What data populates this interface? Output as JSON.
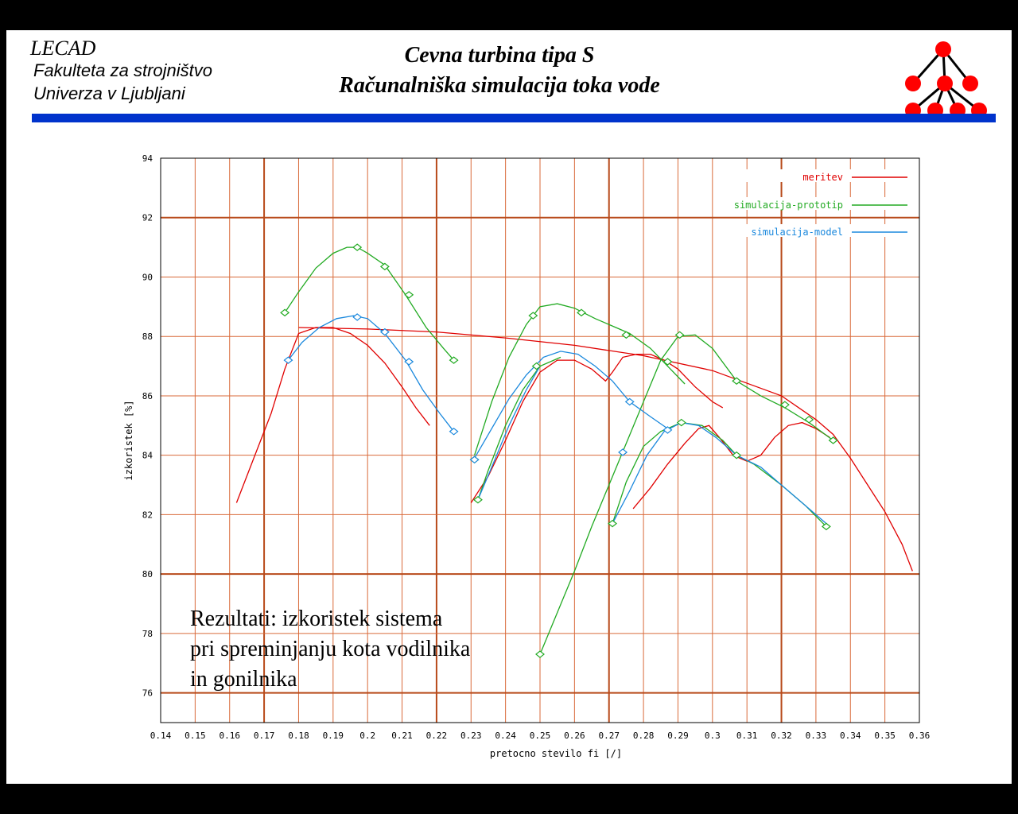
{
  "header": {
    "lab": "LECAD",
    "org_line1": "Fakulteta za strojništvo",
    "org_line2": "Univerza v Ljubljani",
    "title_line1": "Cevna turbina tipa S",
    "title_line2": "Računalniška simulacija toka vode"
  },
  "colors": {
    "header_bar": "#0033cc",
    "logo_node": "#ff0000",
    "grid_major": "#b84a1a",
    "grid_minor": "#d96a3a",
    "meritev": "#e00000",
    "simulacija_prototip": "#22aa22",
    "simulacija_model": "#1a88dd"
  },
  "logo_icon": "tree-icon",
  "caption": {
    "line1": "Rezultati: izkoristek sistema",
    "line2": "pri spreminjanju kota vodilnika",
    "line3": "in gonilnika"
  },
  "chart_data": {
    "type": "line",
    "xlabel": "pretocno stevilo fi [/]",
    "ylabel": "izkoristek [%]",
    "xlim": [
      0.14,
      0.36
    ],
    "ylim": [
      75,
      94
    ],
    "xticks": [
      "0.14",
      "0.15",
      "0.16",
      "0.17",
      "0.18",
      "0.19",
      "0.2",
      "0.21",
      "0.22",
      "0.23",
      "0.24",
      "0.25",
      "0.26",
      "0.27",
      "0.28",
      "0.29",
      "0.3",
      "0.31",
      "0.32",
      "0.33",
      "0.34",
      "0.35",
      "0.36"
    ],
    "yticks": [
      "76",
      "78",
      "80",
      "82",
      "84",
      "86",
      "88",
      "90",
      "92",
      "94"
    ],
    "grid": true,
    "legend_position": "top-right",
    "series": [
      {
        "name": "meritev",
        "color": "#e00000",
        "curves": [
          {
            "x": [
              0.162,
              0.167,
              0.172,
              0.176,
              0.18,
              0.185,
              0.19,
              0.195,
              0.2,
              0.205,
              0.21,
              0.214,
              0.218
            ],
            "y": [
              82.4,
              83.9,
              85.4,
              86.9,
              88.1,
              88.3,
              88.3,
              88.1,
              87.7,
              87.1,
              86.3,
              85.6,
              85.0
            ]
          },
          {
            "x": [
              0.18,
              0.2,
              0.22,
              0.24,
              0.26,
              0.28,
              0.3,
              0.32,
              0.33,
              0.335,
              0.34,
              0.345,
              0.35,
              0.355,
              0.358
            ],
            "y": [
              88.3,
              88.25,
              88.15,
              87.95,
              87.7,
              87.35,
              86.85,
              86.0,
              85.2,
              84.7,
              83.9,
              83.0,
              82.1,
              81.0,
              80.1
            ]
          },
          {
            "x": [
              0.23,
              0.235,
              0.24,
              0.245,
              0.25,
              0.255,
              0.26,
              0.265,
              0.269,
              0.271,
              0.274,
              0.278,
              0.282,
              0.286,
              0.29,
              0.295,
              0.3,
              0.303
            ],
            "y": [
              82.4,
              83.3,
              84.5,
              85.8,
              86.8,
              87.2,
              87.2,
              86.9,
              86.5,
              86.8,
              87.3,
              87.4,
              87.4,
              87.2,
              86.9,
              86.3,
              85.8,
              85.6
            ]
          },
          {
            "x": [
              0.277,
              0.282,
              0.287,
              0.292,
              0.296,
              0.299,
              0.302,
              0.306,
              0.31,
              0.314,
              0.318,
              0.322,
              0.326,
              0.33,
              0.334
            ],
            "y": [
              82.2,
              82.9,
              83.7,
              84.4,
              84.9,
              85.0,
              84.6,
              84.0,
              83.8,
              84.0,
              84.6,
              85.0,
              85.1,
              84.9,
              84.6
            ]
          }
        ]
      },
      {
        "name": "simulacija-prototip",
        "color": "#22aa22",
        "curves": [
          {
            "x": [
              0.176,
              0.18,
              0.185,
              0.19,
              0.194,
              0.197,
              0.2,
              0.205,
              0.211,
              0.217,
              0.222,
              0.225
            ],
            "y": [
              88.8,
              89.5,
              90.3,
              90.8,
              91.0,
              91.0,
              90.8,
              90.4,
              89.4,
              88.3,
              87.6,
              87.2
            ],
            "markers": [
              [
                0.176,
                88.8
              ],
              [
                0.197,
                91.0
              ],
              [
                0.205,
                90.35
              ],
              [
                0.212,
                89.4
              ],
              [
                0.225,
                87.2
              ]
            ]
          },
          {
            "x": [
              0.231,
              0.236,
              0.241,
              0.246,
              0.25,
              0.255,
              0.26,
              0.266,
              0.272,
              0.276,
              0.282,
              0.287,
              0.292
            ],
            "y": [
              84.0,
              85.8,
              87.3,
              88.4,
              89.0,
              89.1,
              88.95,
              88.6,
              88.3,
              88.1,
              87.6,
              87.0,
              86.4
            ],
            "markers": [
              [
                0.231,
                83.85
              ],
              [
                0.248,
                88.7
              ],
              [
                0.262,
                88.8
              ],
              [
                0.275,
                88.05
              ],
              [
                0.287,
                87.15
              ]
            ]
          },
          {
            "x": [
              0.25,
              0.255,
              0.26,
              0.265,
              0.27,
              0.275,
              0.28,
              0.285,
              0.29,
              0.295,
              0.3,
              0.307,
              0.314,
              0.321,
              0.328,
              0.335
            ],
            "y": [
              77.3,
              78.7,
              80.1,
              81.6,
              83.0,
              84.4,
              85.8,
              87.2,
              88.0,
              88.05,
              87.6,
              86.5,
              86.0,
              85.6,
              85.1,
              84.5
            ],
            "markers": [
              [
                0.25,
                77.3
              ],
              [
                0.2905,
                88.05
              ],
              [
                0.307,
                86.5
              ],
              [
                0.321,
                85.7
              ],
              [
                0.328,
                85.2
              ],
              [
                0.335,
                84.5
              ]
            ]
          },
          {
            "x": [
              0.232,
              0.235,
              0.24,
              0.245,
              0.25,
              0.256
            ],
            "y": [
              82.5,
              83.5,
              85.0,
              86.2,
              87.0,
              87.3
            ],
            "markers": [
              [
                0.232,
                82.5
              ],
              [
                0.249,
                87.0
              ]
            ]
          },
          {
            "x": [
              0.271,
              0.275,
              0.28,
              0.285,
              0.291,
              0.297,
              0.303,
              0.307,
              0.312,
              0.32,
              0.327,
              0.333
            ],
            "y": [
              81.7,
              83.1,
              84.3,
              84.8,
              85.1,
              85.0,
              84.5,
              84.0,
              83.7,
              83.0,
              82.3,
              81.6
            ],
            "markers": [
              [
                0.271,
                81.7
              ],
              [
                0.291,
                85.1
              ],
              [
                0.307,
                84.0
              ],
              [
                0.333,
                81.6
              ]
            ]
          }
        ]
      },
      {
        "name": "simulacija-model",
        "color": "#1a88dd",
        "curves": [
          {
            "x": [
              0.177,
              0.181,
              0.186,
              0.191,
              0.196,
              0.2,
              0.205,
              0.211,
              0.216,
              0.221,
              0.225
            ],
            "y": [
              87.2,
              87.8,
              88.3,
              88.6,
              88.7,
              88.6,
              88.1,
              87.2,
              86.2,
              85.4,
              84.8
            ],
            "markers": [
              [
                0.177,
                87.2
              ],
              [
                0.197,
                88.65
              ],
              [
                0.205,
                88.15
              ],
              [
                0.212,
                87.15
              ],
              [
                0.225,
                84.8
              ]
            ]
          },
          {
            "x": [
              0.231,
              0.236,
              0.241,
              0.246,
              0.251,
              0.256,
              0.261,
              0.266,
              0.271,
              0.276,
              0.282,
              0.287
            ],
            "y": [
              83.9,
              84.9,
              85.9,
              86.7,
              87.3,
              87.5,
              87.4,
              87.0,
              86.5,
              85.8,
              85.3,
              84.9
            ],
            "markers": [
              [
                0.231,
                83.85
              ],
              [
                0.276,
                85.8
              ],
              [
                0.287,
                84.85
              ]
            ]
          },
          {
            "x": [
              0.271,
              0.276,
              0.281,
              0.286,
              0.291,
              0.296,
              0.301,
              0.307,
              0.314,
              0.32,
              0.327,
              0.334
            ],
            "y": [
              81.7,
              82.8,
              84.0,
              84.8,
              85.1,
              85.0,
              84.6,
              84.0,
              83.6,
              83.0,
              82.3,
              81.6
            ],
            "markers": [
              [
                0.274,
                84.1
              ]
            ]
          },
          {
            "x": [
              0.232,
              0.236,
              0.241,
              0.246,
              0.25
            ],
            "y": [
              82.5,
              83.6,
              85.0,
              86.2,
              87.0
            ],
            "markers": []
          }
        ]
      }
    ]
  }
}
